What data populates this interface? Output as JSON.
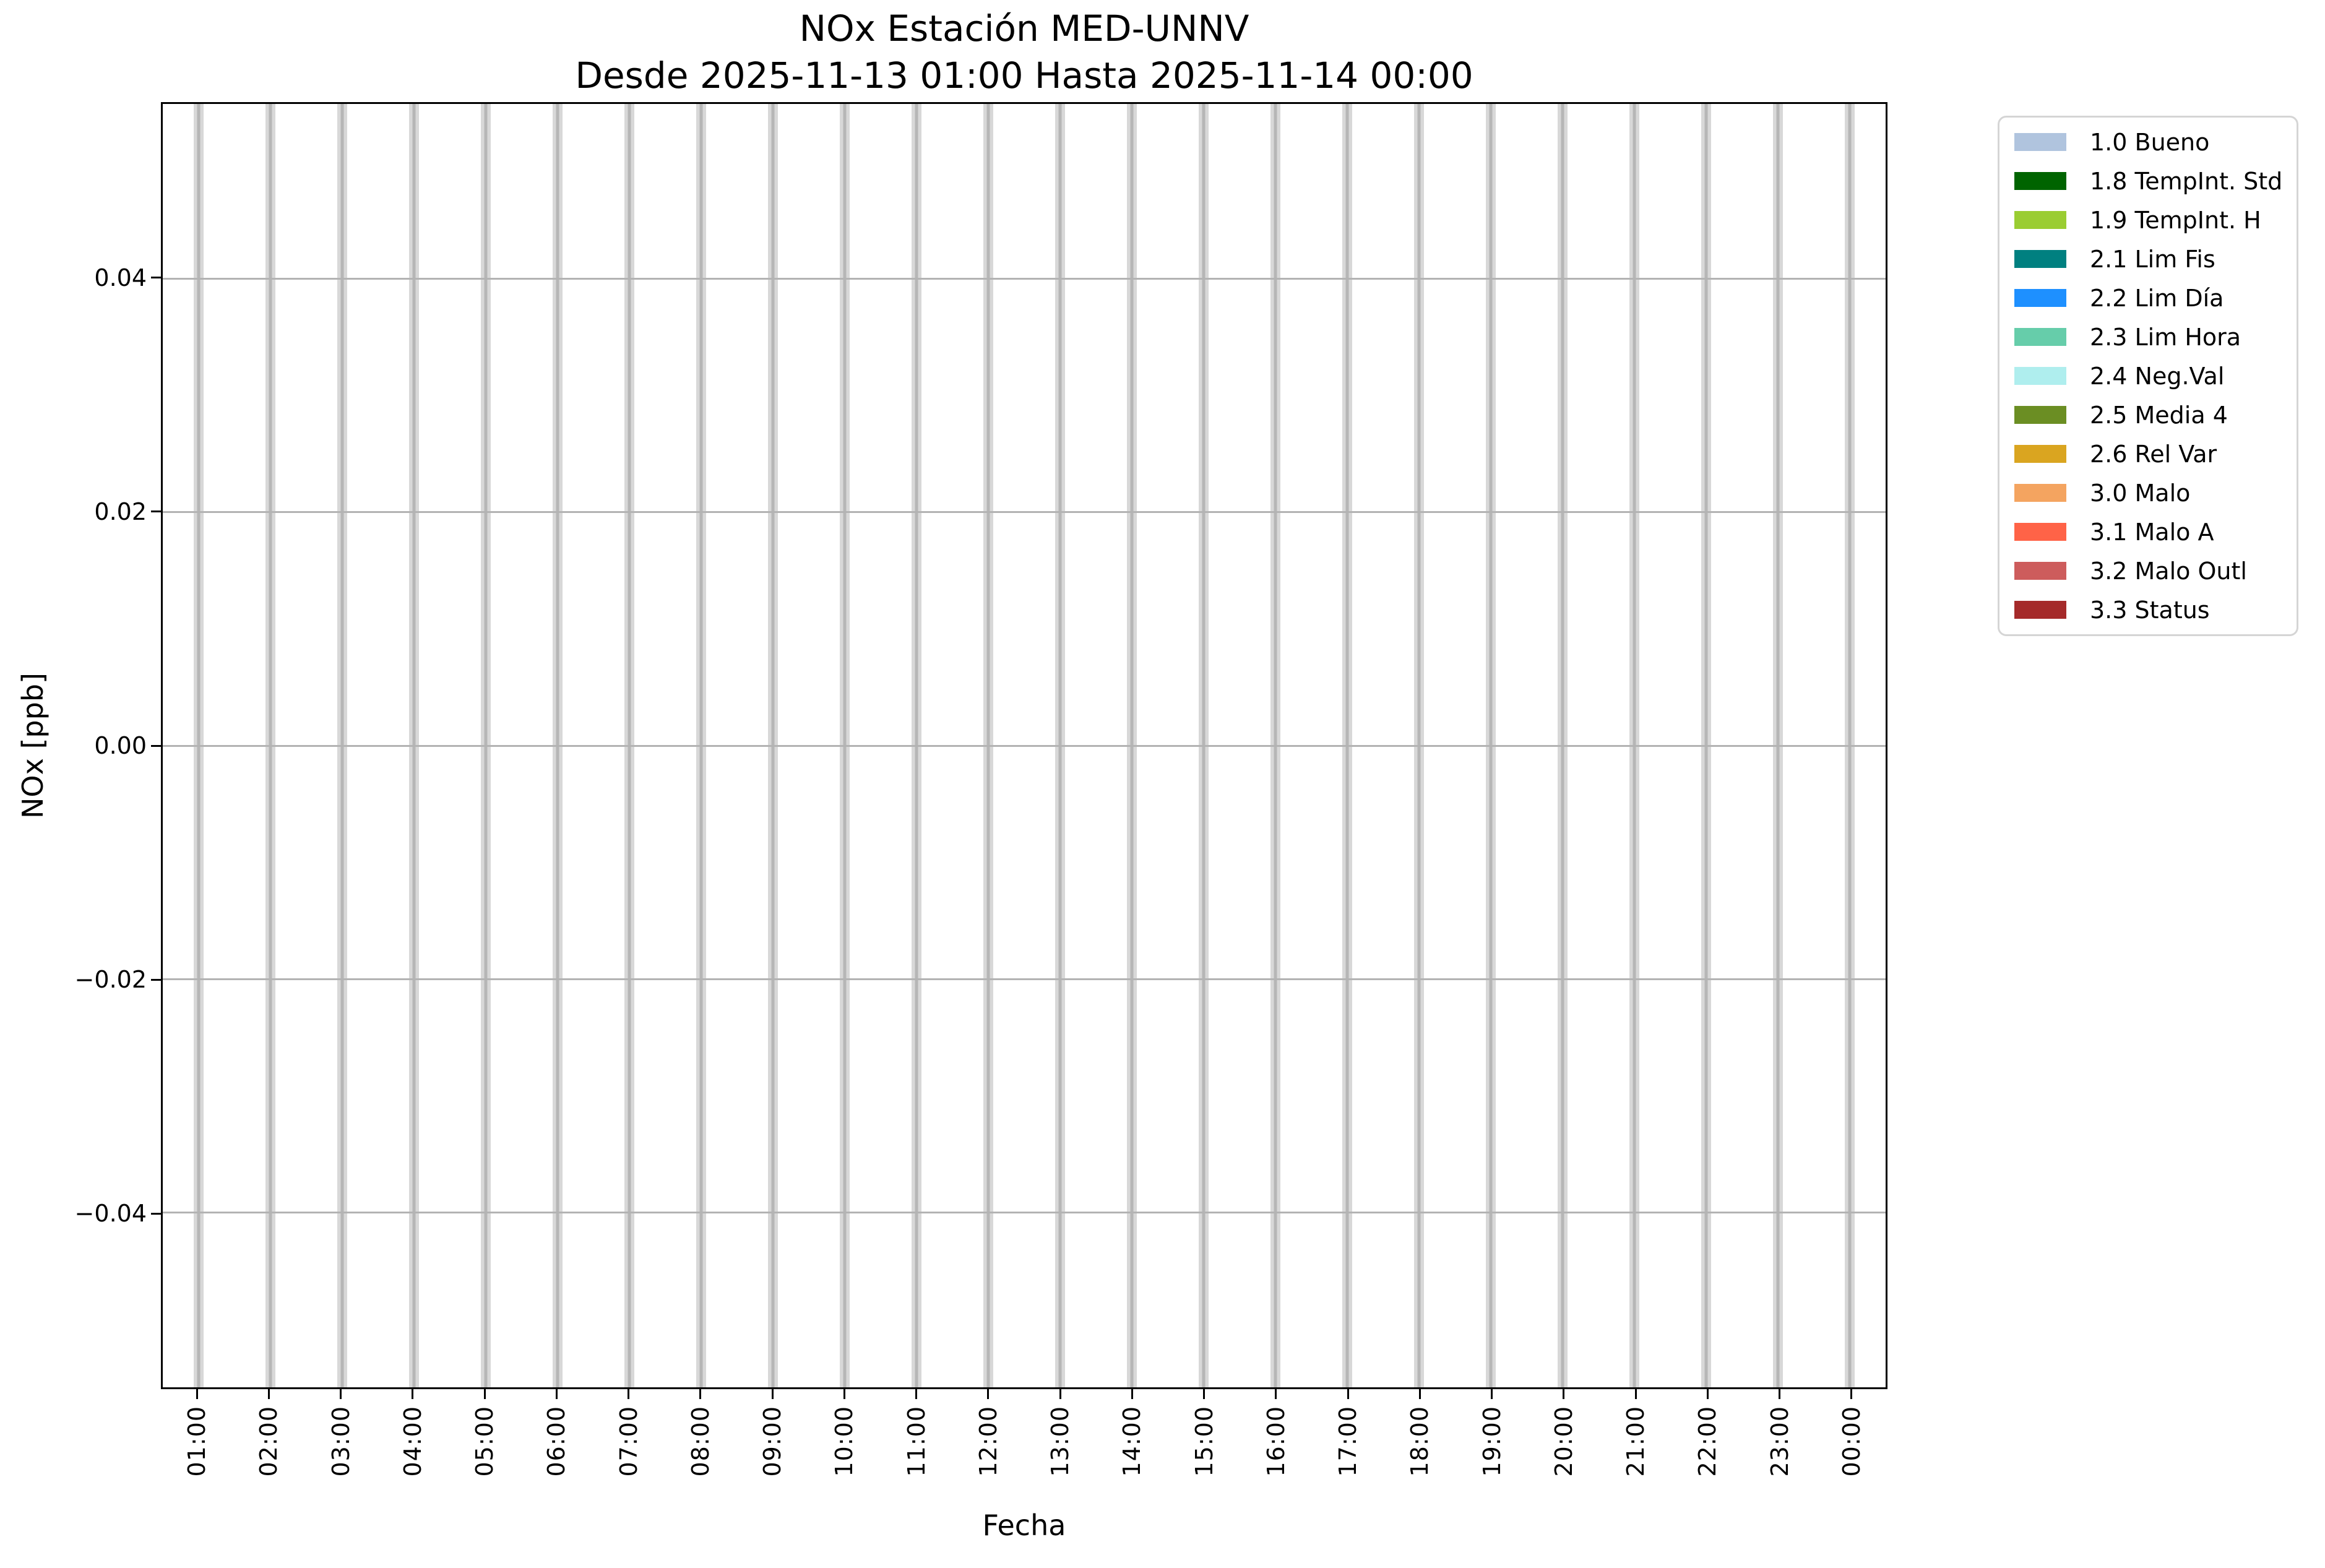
{
  "chart_data": {
    "type": "bar",
    "title": "NOx Estación MED-UNNV",
    "subtitle": "Desde 2025-11-13 01:00 Hasta 2025-11-14 00:00",
    "xlabel": "Fecha",
    "ylabel": "NOx [ppb]",
    "x_tick_labels": [
      "01:00",
      "02:00",
      "03:00",
      "04:00",
      "05:00",
      "06:00",
      "07:00",
      "08:00",
      "09:00",
      "10:00",
      "11:00",
      "12:00",
      "13:00",
      "14:00",
      "15:00",
      "16:00",
      "17:00",
      "18:00",
      "19:00",
      "20:00",
      "21:00",
      "22:00",
      "23:00",
      "00:00"
    ],
    "y_tick_values": [
      0.04,
      0.02,
      0.0,
      -0.02,
      -0.04
    ],
    "y_tick_labels": [
      "0.04",
      "0.02",
      "0.00",
      "−0.02",
      "−0.04"
    ],
    "ylim": [
      -0.055,
      0.055
    ],
    "series": [],
    "grid": {
      "x": true,
      "y": true
    },
    "legend": {
      "position": "outside-upper-right",
      "entries": [
        {
          "label": "1.0 Bueno",
          "color": "#B0C4DE"
        },
        {
          "label": "1.8 TempInt. Std",
          "color": "#006400"
        },
        {
          "label": "1.9 TempInt. H",
          "color": "#9ACD32"
        },
        {
          "label": "2.1 Lim Fis",
          "color": "#008080"
        },
        {
          "label": "2.2 Lim Día",
          "color": "#1E90FF"
        },
        {
          "label": "2.3 Lim Hora",
          "color": "#66CDAA"
        },
        {
          "label": "2.4 Neg.Val",
          "color": "#AFEEEE"
        },
        {
          "label": "2.5 Media 4",
          "color": "#6B8E23"
        },
        {
          "label": "2.6 Rel Var",
          "color": "#DAA520"
        },
        {
          "label": "3.0 Malo",
          "color": "#F4A460"
        },
        {
          "label": "3.1 Malo A",
          "color": "#FF6347"
        },
        {
          "label": "3.2 Malo Outl",
          "color": "#CD5C5C"
        },
        {
          "label": "3.3 Status",
          "color": "#A52A2A"
        }
      ]
    }
  },
  "colors": {
    "background": "#ffffff",
    "spine": "#000000",
    "grid_band": "#d8d8d8",
    "grid_band_center": "#b6b6b6",
    "gridline": "#b3b3b3",
    "legend_border": "#d5d5d5",
    "text": "#000000"
  }
}
